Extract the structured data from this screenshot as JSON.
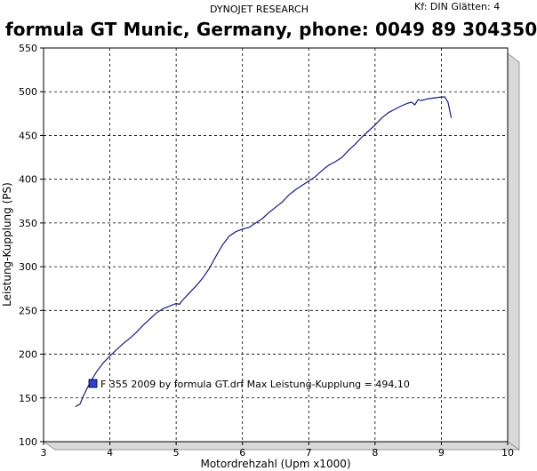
{
  "header": {
    "brand": "DYNOJET RESEARCH",
    "settings": "Kf: DIN  Glätten: 4",
    "title": "formula GT  Munic, Germany, phone: 0049 89 304350"
  },
  "chart_data": {
    "type": "line",
    "xlabel": "Motordrehzahl (Upm x1000)",
    "ylabel": "Leistung-Kupplung (PS)",
    "xlim": [
      3,
      10
    ],
    "ylim": [
      100,
      550
    ],
    "xticks": [
      "3",
      "4",
      "5",
      "6",
      "7",
      "8",
      "9",
      "10"
    ],
    "yticks": [
      "100",
      "150",
      "200",
      "250",
      "300",
      "350",
      "400",
      "450",
      "500",
      "550"
    ],
    "grid": true,
    "legend": "F 355 2009 by formula GT.drf Max Leistung-Kupplung = 494,10",
    "series_color": "#1a1a8c",
    "marker_color": "#2b3fd6",
    "series": [
      {
        "x": [
          3.48,
          3.55,
          3.6,
          3.65,
          3.72,
          3.8,
          3.9,
          4.0,
          4.1,
          4.2,
          4.3,
          4.4,
          4.5,
          4.6,
          4.7,
          4.8,
          4.9,
          5.0,
          5.05,
          5.1,
          5.2,
          5.3,
          5.4,
          5.5,
          5.6,
          5.7,
          5.75,
          5.8,
          5.9,
          6.0,
          6.1,
          6.2,
          6.3,
          6.4,
          6.5,
          6.6,
          6.7,
          6.8,
          6.9,
          7.0,
          7.1,
          7.2,
          7.3,
          7.4,
          7.5,
          7.6,
          7.7,
          7.8,
          7.9,
          8.0,
          8.1,
          8.2,
          8.3,
          8.4,
          8.5,
          8.55,
          8.6,
          8.65,
          8.7,
          8.8,
          8.9,
          9.0,
          9.05,
          9.1,
          9.15
        ],
        "y": [
          140,
          143,
          152,
          160,
          170,
          180,
          190,
          198,
          205,
          212,
          218,
          225,
          233,
          240,
          247,
          252,
          255,
          258,
          257,
          262,
          270,
          278,
          287,
          298,
          312,
          325,
          330,
          335,
          340,
          343,
          345,
          350,
          355,
          362,
          368,
          374,
          382,
          388,
          393,
          398,
          403,
          410,
          416,
          420,
          425,
          433,
          440,
          448,
          455,
          462,
          470,
          476,
          480,
          484,
          487,
          488,
          485,
          491,
          490,
          492,
          493,
          494,
          494.1,
          488,
          470
        ]
      }
    ]
  }
}
